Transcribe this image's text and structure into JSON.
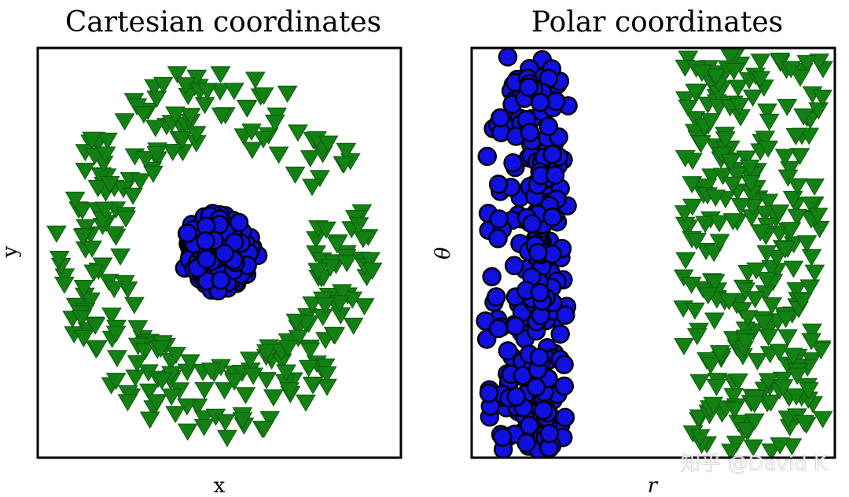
{
  "chart_data": [
    {
      "type": "scatter",
      "title": "Cartesian coordinates",
      "xlabel": "x",
      "ylabel": "y",
      "grid": false,
      "series": [
        {
          "marker": "circle",
          "color": "#1010e0",
          "edge_color": "#000000",
          "shape": "dense disk",
          "center": [
            0,
            0
          ],
          "radius_range": [
            0,
            0.3
          ],
          "count": 300
        },
        {
          "marker": "triangle-down",
          "color": "#138013",
          "shape": "ring",
          "center": [
            0,
            0
          ],
          "radius_range": [
            0.85,
            1.45
          ],
          "count": 290
        }
      ],
      "xlim": [
        -1.6,
        1.6
      ],
      "ylim": [
        -1.6,
        1.6
      ]
    },
    {
      "type": "scatter",
      "title": "Polar coordinates",
      "xlabel": "r",
      "ylabel": "θ",
      "grid": false,
      "series": [
        {
          "marker": "circle",
          "color": "#1010e0",
          "edge_color": "#000000",
          "shape": "vertical band",
          "r_range": [
            0,
            0.3
          ],
          "theta_range": [
            0,
            6.28
          ],
          "count": 300
        },
        {
          "marker": "triangle-down",
          "color": "#138013",
          "shape": "vertical band",
          "r_range": [
            0.85,
            1.45
          ],
          "theta_range": [
            0,
            6.28
          ],
          "count": 290
        }
      ],
      "xlim": [
        -0.05,
        1.5
      ],
      "ylim": [
        -0.1,
        6.4
      ]
    }
  ],
  "watermark": "知乎 @David K"
}
